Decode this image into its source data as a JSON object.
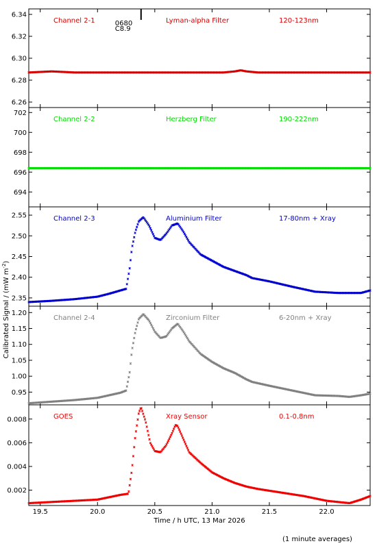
{
  "chart_data": [
    {
      "type": "scatter",
      "panel_label": "Channel 2-1",
      "filter": "Lyman-alpha Filter",
      "band": "120-123nm",
      "color": "#d40000",
      "ylim": [
        6.255,
        6.345
      ],
      "yticks": [
        "6.26",
        "6.28",
        "6.30",
        "6.32",
        "6.34"
      ],
      "yticks_values": [
        6.26,
        6.28,
        6.3,
        6.32,
        6.34
      ],
      "annotations": [
        "0680",
        "C8.9"
      ],
      "marker_x": 20.38,
      "series": [
        {
          "x": [
            19.4,
            19.6,
            19.8,
            20.0,
            20.2,
            20.4,
            20.6,
            20.8,
            21.0,
            21.1,
            21.2,
            21.25,
            21.3,
            21.4,
            21.6,
            21.8,
            22.0,
            22.2,
            22.38
          ],
          "y": [
            6.287,
            6.288,
            6.287,
            6.287,
            6.287,
            6.287,
            6.287,
            6.287,
            6.287,
            6.287,
            6.288,
            6.289,
            6.288,
            6.287,
            6.287,
            6.287,
            6.287,
            6.287,
            6.287
          ]
        }
      ]
    },
    {
      "type": "scatter",
      "panel_label": "Channel 2-2",
      "filter": "Herzberg Filter",
      "band": "190-222nm",
      "color": "#00dd00",
      "ylim": [
        692.5,
        702.5
      ],
      "yticks": [
        "694",
        "696",
        "698",
        "700",
        "702"
      ],
      "yticks_values": [
        694,
        696,
        698,
        700,
        702
      ],
      "series": [
        {
          "x": [
            19.4,
            19.8,
            20.2,
            20.6,
            21.0,
            21.4,
            21.8,
            22.2,
            22.38
          ],
          "y": [
            696.4,
            696.4,
            696.4,
            696.4,
            696.4,
            696.4,
            696.4,
            696.4,
            696.4
          ]
        }
      ]
    },
    {
      "type": "scatter",
      "panel_label": "Channel 2-3",
      "filter": "Aluminium Filter",
      "band": "17-80nm + Xray",
      "color": "#0000cc",
      "ylim": [
        2.33,
        2.57
      ],
      "yticks": [
        "2.35",
        "2.40",
        "2.45",
        "2.50",
        "2.55"
      ],
      "yticks_values": [
        2.35,
        2.4,
        2.45,
        2.5,
        2.55
      ],
      "series": [
        {
          "x": [
            19.4,
            19.6,
            19.8,
            20.0,
            20.1,
            20.2,
            20.25,
            20.28,
            20.3,
            20.33,
            20.36,
            20.4,
            20.45,
            20.5,
            20.55,
            20.6,
            20.65,
            20.7,
            20.75,
            20.8,
            20.9,
            21.0,
            21.1,
            21.2,
            21.3,
            21.35,
            21.5,
            21.7,
            21.9,
            22.1,
            22.2,
            22.3,
            22.38
          ],
          "y": [
            2.34,
            2.343,
            2.347,
            2.353,
            2.36,
            2.368,
            2.372,
            2.42,
            2.47,
            2.51,
            2.535,
            2.545,
            2.525,
            2.495,
            2.49,
            2.505,
            2.525,
            2.53,
            2.51,
            2.485,
            2.455,
            2.44,
            2.425,
            2.415,
            2.405,
            2.398,
            2.39,
            2.377,
            2.365,
            2.362,
            2.362,
            2.362,
            2.368
          ]
        }
      ]
    },
    {
      "type": "scatter",
      "panel_label": "Channel 2-4",
      "filter": "Zirconium Filter",
      "band": "6-20nm + Xray",
      "color": "#808080",
      "ylim": [
        0.91,
        1.22
      ],
      "yticks": [
        "0.95",
        "1.00",
        "1.05",
        "1.10",
        "1.15",
        "1.20"
      ],
      "yticks_values": [
        0.95,
        1.0,
        1.05,
        1.1,
        1.15,
        1.2
      ],
      "series": [
        {
          "x": [
            19.4,
            19.6,
            19.8,
            20.0,
            20.1,
            20.2,
            20.25,
            20.28,
            20.3,
            20.33,
            20.36,
            20.4,
            20.45,
            20.5,
            20.55,
            20.6,
            20.65,
            20.7,
            20.75,
            20.8,
            20.9,
            21.0,
            21.1,
            21.2,
            21.3,
            21.35,
            21.5,
            21.7,
            21.9,
            22.1,
            22.2,
            22.3,
            22.38
          ],
          "y": [
            0.915,
            0.92,
            0.925,
            0.932,
            0.94,
            0.948,
            0.955,
            1.01,
            1.08,
            1.14,
            1.18,
            1.195,
            1.175,
            1.14,
            1.12,
            1.125,
            1.15,
            1.165,
            1.14,
            1.11,
            1.07,
            1.045,
            1.025,
            1.01,
            0.99,
            0.982,
            0.97,
            0.955,
            0.94,
            0.938,
            0.935,
            0.94,
            0.945
          ]
        }
      ]
    },
    {
      "type": "scatter",
      "panel_label": "GOES",
      "filter": "Xray Sensor",
      "band": "0.1-0.8nm",
      "color": "#ee0000",
      "ylim": [
        0.0007,
        0.0092
      ],
      "yticks": [
        "0.002",
        "0.004",
        "0.006",
        "0.008"
      ],
      "yticks_values": [
        0.002,
        0.004,
        0.006,
        0.008
      ],
      "series": [
        {
          "x": [
            19.4,
            19.6,
            19.8,
            20.0,
            20.1,
            20.2,
            20.27,
            20.3,
            20.33,
            20.36,
            20.38,
            20.42,
            20.46,
            20.5,
            20.55,
            20.6,
            20.65,
            20.68,
            20.7,
            20.75,
            20.8,
            20.9,
            21.0,
            21.1,
            21.2,
            21.3,
            21.4,
            21.6,
            21.8,
            22.0,
            22.2,
            22.3,
            22.38
          ],
          "y": [
            0.0009,
            0.001,
            0.0011,
            0.0012,
            0.0014,
            0.0016,
            0.0017,
            0.0037,
            0.0066,
            0.0085,
            0.009,
            0.0078,
            0.006,
            0.0053,
            0.0052,
            0.0058,
            0.0068,
            0.0075,
            0.0074,
            0.0063,
            0.0052,
            0.0043,
            0.0035,
            0.003,
            0.0026,
            0.0023,
            0.0021,
            0.0018,
            0.0015,
            0.0011,
            0.0009,
            0.0012,
            0.0015
          ]
        }
      ]
    }
  ],
  "x_axis": {
    "xlim": [
      19.4,
      22.38
    ],
    "ticks": [
      "19.5",
      "20.0",
      "20.5",
      "21.0",
      "21.5",
      "22.0"
    ],
    "tick_values": [
      19.5,
      20.0,
      20.5,
      21.0,
      21.5,
      22.0
    ],
    "label": "Time / h UTC, 13 Mar 2026"
  },
  "y_axis_label": "Calibrated Signal / (mW m",
  "y_axis_label_sup": "-2",
  "y_axis_label_end": ")",
  "footer_note": "(1 minute averages)"
}
